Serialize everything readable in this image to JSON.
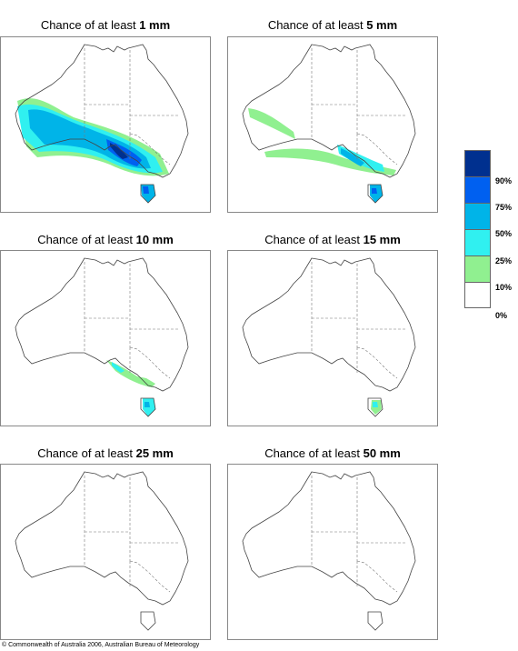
{
  "panels": [
    {
      "prefix": "Chance of at least ",
      "amount": "1 mm"
    },
    {
      "prefix": "Chance of at least ",
      "amount": "5 mm"
    },
    {
      "prefix": "Chance of at least ",
      "amount": "10 mm"
    },
    {
      "prefix": "Chance of at least ",
      "amount": "15 mm"
    },
    {
      "prefix": "Chance of at least ",
      "amount": "25 mm"
    },
    {
      "prefix": "Chance of at least ",
      "amount": "50 mm"
    }
  ],
  "legend": {
    "colors": [
      "#00308f",
      "#0060f0",
      "#00b4e8",
      "#30f0f0",
      "#90f090",
      "#ffffff"
    ],
    "labels": [
      "90%",
      "75%",
      "50%",
      "25%",
      "10%",
      "0%"
    ]
  },
  "copyright": "© Commonwealth of Australia 2006, Australian Bureau of Meteorology"
}
